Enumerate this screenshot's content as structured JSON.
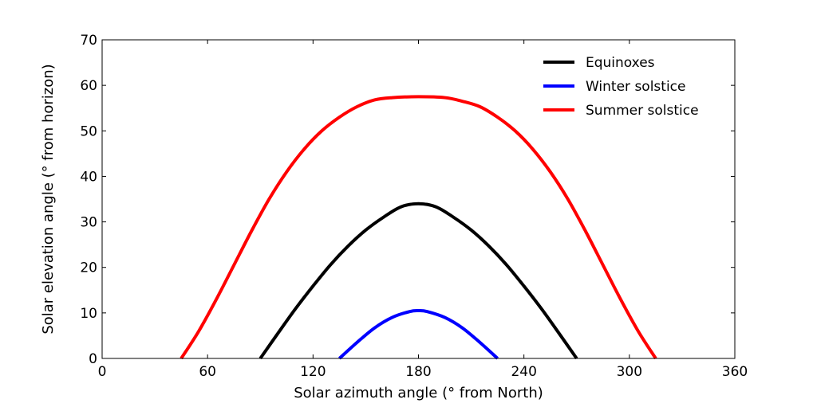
{
  "chart_data": {
    "type": "line",
    "title": "",
    "xlabel": "Solar azimuth angle (° from North)",
    "ylabel": "Solar elevation angle (° from horizon)",
    "xlim": [
      0,
      360
    ],
    "ylim": [
      0,
      70
    ],
    "xticks": [
      0,
      60,
      120,
      180,
      240,
      300,
      360
    ],
    "yticks": [
      0,
      10,
      20,
      30,
      40,
      50,
      60,
      70
    ],
    "grid": false,
    "legend_position": "top-right",
    "series": [
      {
        "name": "Equinoxes",
        "color": "#000000",
        "x": [
          90,
          100,
          110,
          120,
          130,
          140,
          150,
          160,
          170,
          180,
          190,
          200,
          210,
          220,
          230,
          240,
          250,
          260,
          270
        ],
        "y": [
          0,
          5.5,
          10.9,
          15.9,
          20.6,
          24.7,
          28.2,
          31.0,
          33.3,
          34.0,
          33.3,
          31.0,
          28.2,
          24.7,
          20.6,
          15.9,
          10.9,
          5.5,
          0
        ]
      },
      {
        "name": "Winter solstice",
        "color": "#0000ff",
        "x": [
          135,
          145,
          155,
          165,
          175,
          180,
          185,
          195,
          205,
          215,
          225
        ],
        "y": [
          0,
          3.5,
          6.7,
          9.0,
          10.3,
          10.5,
          10.3,
          9.0,
          6.7,
          3.5,
          0
        ]
      },
      {
        "name": "Summer solstice",
        "color": "#ff0000",
        "x": [
          45,
          55,
          65,
          75,
          85,
          95,
          105,
          115,
          125,
          135,
          145,
          155,
          165,
          180,
          195,
          205,
          215,
          225,
          235,
          245,
          255,
          265,
          275,
          285,
          295,
          305,
          315
        ],
        "y": [
          0,
          6.0,
          13.0,
          20.5,
          28.0,
          35.0,
          41.0,
          46.0,
          50.0,
          53.0,
          55.3,
          56.8,
          57.3,
          57.5,
          57.3,
          56.5,
          55.3,
          53.0,
          50.0,
          46.0,
          41.0,
          35.0,
          28.0,
          20.5,
          13.0,
          6.0,
          0
        ]
      }
    ]
  }
}
